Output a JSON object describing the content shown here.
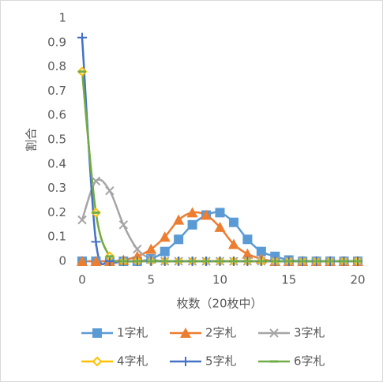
{
  "chart_data": {
    "type": "scatter",
    "x_label": "枚数（20枚中）",
    "y_label": "割合",
    "x": [
      0,
      1,
      2,
      3,
      4,
      5,
      6,
      7,
      8,
      9,
      10,
      11,
      12,
      13,
      14,
      15,
      16,
      17,
      18,
      19,
      20
    ],
    "xlim": [
      0,
      20
    ],
    "xticks": [
      0,
      5,
      10,
      15,
      20
    ],
    "ylim": [
      0,
      1
    ],
    "yticks": [
      0,
      0.1,
      0.2,
      0.3,
      0.4,
      0.5,
      0.6,
      0.7,
      0.8,
      0.9,
      1
    ],
    "smooth": true,
    "grid": false,
    "series": [
      {
        "name": "1字札",
        "color": "#5b9bd5",
        "marker": "square",
        "values": [
          0,
          0,
          0,
          0,
          0,
          0.01,
          0.04,
          0.09,
          0.15,
          0.19,
          0.2,
          0.16,
          0.09,
          0.04,
          0.02,
          0.005,
          0,
          0,
          0,
          0,
          0
        ]
      },
      {
        "name": "2字札",
        "color": "#ed7d31",
        "marker": "triangle",
        "values": [
          0,
          0,
          0,
          0.005,
          0.02,
          0.05,
          0.1,
          0.17,
          0.2,
          0.19,
          0.14,
          0.07,
          0.03,
          0.01,
          0,
          0,
          0,
          0,
          0,
          0,
          0
        ]
      },
      {
        "name": "3字札",
        "color": "#a5a5a5",
        "marker": "x",
        "values": [
          0.17,
          0.33,
          0.29,
          0.15,
          0.05,
          0.01,
          0,
          0,
          0,
          0,
          0,
          0,
          0,
          0,
          0,
          0,
          0,
          0,
          0,
          0,
          0
        ]
      },
      {
        "name": "4字札",
        "color": "#ffc000",
        "marker": "diamond",
        "values": [
          0.78,
          0.2,
          0.02,
          0,
          0,
          0,
          0,
          0,
          0,
          0,
          0,
          0,
          0,
          0,
          0,
          0,
          0,
          0,
          0,
          0,
          0
        ]
      },
      {
        "name": "5字札",
        "color": "#4472c4",
        "marker": "plus",
        "values": [
          0.92,
          0.08,
          0,
          0,
          0,
          0,
          0,
          0,
          0,
          0,
          0,
          0,
          0,
          0,
          0,
          0,
          0,
          0,
          0,
          0,
          0
        ]
      },
      {
        "name": "6字札",
        "color": "#70ad47",
        "marker": "dash",
        "values": [
          0.78,
          0.2,
          0.02,
          0,
          0,
          0,
          0,
          0,
          0,
          0,
          0,
          0,
          0,
          0,
          0,
          0,
          0,
          0,
          0,
          0,
          0
        ]
      }
    ]
  }
}
